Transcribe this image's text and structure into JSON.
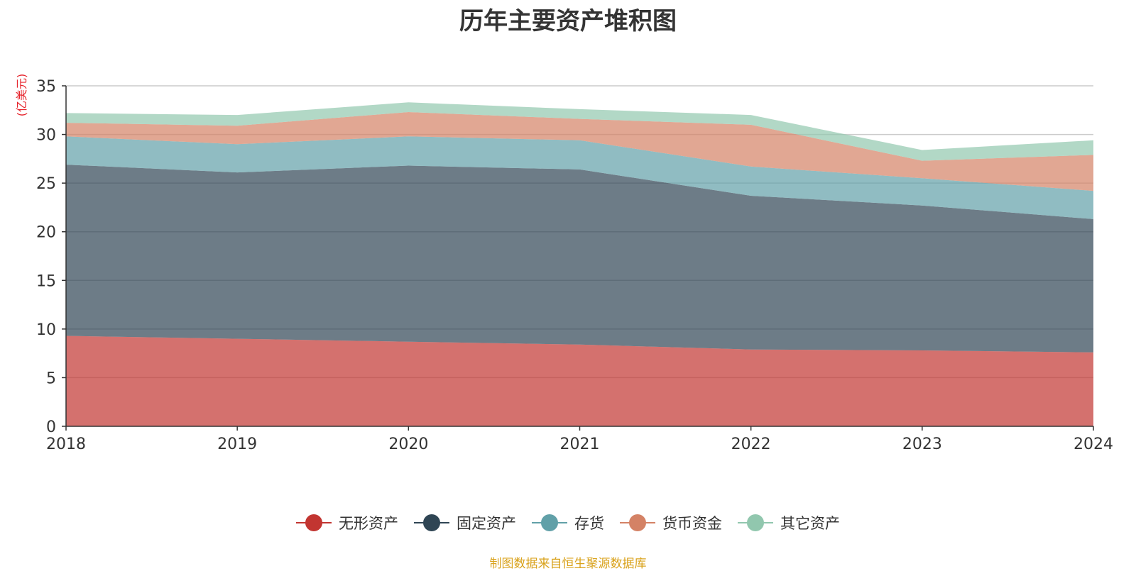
{
  "chart_data": {
    "type": "area",
    "stacked": true,
    "title": "历年主要资产堆积图",
    "ylabel": "(亿美元)",
    "xlabel": "",
    "x": [
      "2018",
      "2019",
      "2020",
      "2021",
      "2022",
      "2023",
      "2024"
    ],
    "ylim": [
      0,
      35
    ],
    "yticks": [
      0,
      5,
      10,
      15,
      20,
      25,
      30,
      35
    ],
    "grid": true,
    "legend_position": "bottom",
    "series": [
      {
        "name": "无形资产",
        "color": "#c23531",
        "values": [
          9.3,
          9.0,
          8.7,
          8.4,
          7.9,
          7.8,
          7.6
        ]
      },
      {
        "name": "固定资产",
        "color": "#2f4554",
        "values": [
          17.6,
          17.1,
          18.1,
          18.0,
          15.8,
          14.9,
          13.7
        ]
      },
      {
        "name": "存货",
        "color": "#61a0a8",
        "values": [
          2.9,
          2.9,
          3.0,
          3.0,
          3.0,
          2.8,
          2.9
        ]
      },
      {
        "name": "货币资金",
        "color": "#d48265",
        "values": [
          1.4,
          1.9,
          2.5,
          2.2,
          4.3,
          1.8,
          3.7
        ]
      },
      {
        "name": "其它资产",
        "color": "#91c7ae",
        "values": [
          1.0,
          1.1,
          1.0,
          1.0,
          1.0,
          1.1,
          1.5
        ]
      }
    ]
  },
  "source_note": "制图数据来自恒生聚源数据库"
}
